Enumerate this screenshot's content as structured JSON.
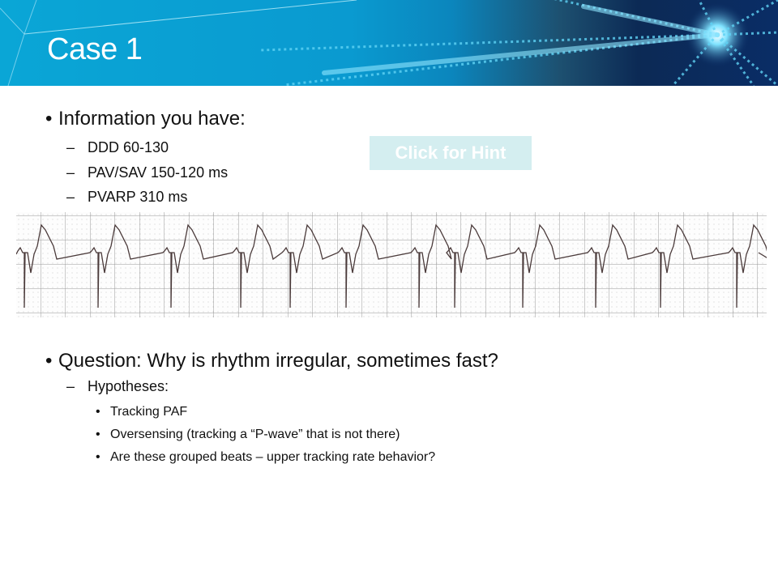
{
  "slide": {
    "title": "Case 1",
    "info_heading": "Information you have:",
    "info_items": [
      "DDD 60-130",
      "PAV/SAV 150-120 ms",
      "PVARP 310 ms"
    ],
    "hint_button": "Click for Hint",
    "question": "Question: Why is rhythm irregular, sometimes fast?",
    "hypotheses_heading": "Hypotheses:",
    "hypotheses": [
      "Tracking PAF",
      "Oversensing (tracking a “P-wave” that is not there)",
      "Are these grouped beats – upper tracking rate behavior?"
    ]
  },
  "colors": {
    "banner": "#0aa6d6",
    "hint_bg": "#d4eef0",
    "ecg_trace": "#4a3a3a",
    "ecg_grid": "#999999"
  },
  "icons": {
    "bullet": "•",
    "dash": "–"
  }
}
